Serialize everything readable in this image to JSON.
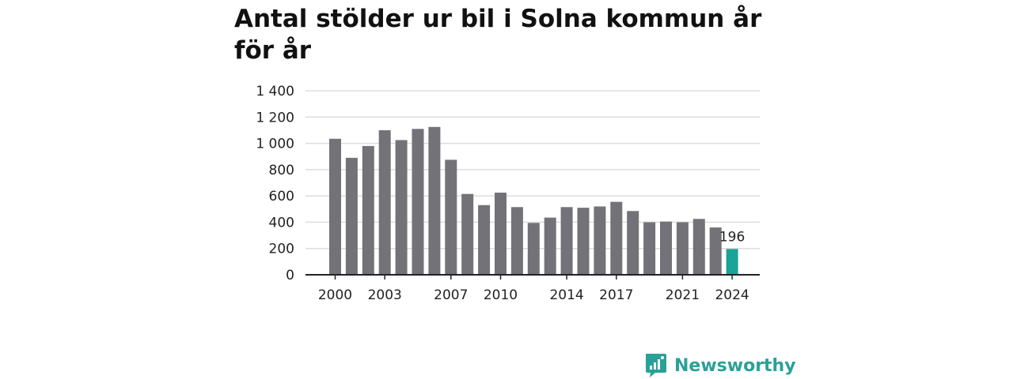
{
  "title": "Antal stölder ur bil i Solna kommun år för år",
  "brand": {
    "name": "Newsworthy",
    "color": "#2aa198"
  },
  "colors": {
    "bar": "#737278",
    "highlight": "#1aa397",
    "grid": "#dddddd",
    "axis": "#222222"
  },
  "chart_data": {
    "type": "bar",
    "title": "Antal stölder ur bil i Solna kommun år för år",
    "xlabel": "",
    "ylabel": "",
    "categories": [
      "2000",
      "2001",
      "2002",
      "2003",
      "2004",
      "2005",
      "2006",
      "2007",
      "2008",
      "2009",
      "2010",
      "2011",
      "2012",
      "2013",
      "2014",
      "2015",
      "2016",
      "2017",
      "2018",
      "2019",
      "2020",
      "2021",
      "2022",
      "2023",
      "2024"
    ],
    "x_tick_labels": [
      "2000",
      "2003",
      "2007",
      "2010",
      "2014",
      "2017",
      "2021",
      "2024"
    ],
    "values": [
      1035,
      890,
      980,
      1100,
      1025,
      1110,
      1125,
      875,
      615,
      530,
      625,
      515,
      395,
      435,
      515,
      510,
      520,
      555,
      485,
      400,
      405,
      400,
      425,
      360,
      196
    ],
    "highlight_index": 24,
    "highlight_label": "196",
    "ylim": [
      0,
      1400
    ],
    "y_ticks": [
      0,
      200,
      400,
      600,
      800,
      1000,
      1200,
      1400
    ],
    "y_tick_labels": [
      "0",
      "200",
      "400",
      "600",
      "800",
      "1 000",
      "1 200",
      "1 400"
    ],
    "grid": true
  }
}
